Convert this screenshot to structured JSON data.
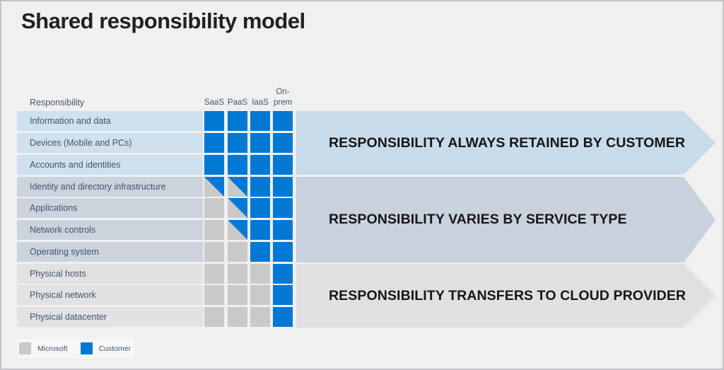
{
  "title": "Shared responsibility model",
  "table": {
    "header": {
      "responsibility": "Responsibility",
      "columns": [
        "SaaS",
        "PaaS",
        "IaaS",
        "On-\nprem"
      ]
    },
    "rows": [
      {
        "label": "Information and data",
        "group": "retained",
        "cells": [
          "customer",
          "customer",
          "customer",
          "customer"
        ]
      },
      {
        "label": "Devices (Mobile and PCs)",
        "group": "retained",
        "cells": [
          "customer",
          "customer",
          "customer",
          "customer"
        ]
      },
      {
        "label": "Accounts and identities",
        "group": "retained",
        "cells": [
          "customer",
          "customer",
          "customer",
          "customer"
        ]
      },
      {
        "label": "Identity and directory infrastructure",
        "group": "varies",
        "cells": [
          "shared",
          "shared",
          "customer",
          "customer"
        ]
      },
      {
        "label": "Applications",
        "group": "varies",
        "cells": [
          "microsoft",
          "shared",
          "customer",
          "customer"
        ]
      },
      {
        "label": "Network controls",
        "group": "varies",
        "cells": [
          "microsoft",
          "shared",
          "customer",
          "customer"
        ]
      },
      {
        "label": "Operating system",
        "group": "varies",
        "cells": [
          "microsoft",
          "microsoft",
          "customer",
          "customer"
        ]
      },
      {
        "label": "Physical hosts",
        "group": "transfers",
        "cells": [
          "microsoft",
          "microsoft",
          "microsoft",
          "customer"
        ]
      },
      {
        "label": "Physical network",
        "group": "transfers",
        "cells": [
          "microsoft",
          "microsoft",
          "microsoft",
          "customer"
        ]
      },
      {
        "label": "Physical datacenter",
        "group": "transfers",
        "cells": [
          "microsoft",
          "microsoft",
          "microsoft",
          "customer"
        ]
      }
    ]
  },
  "bands": [
    {
      "id": "retained",
      "label": "RESPONSIBILITY ALWAYS RETAINED BY CUSTOMER",
      "color": "#c8dbeb"
    },
    {
      "id": "varies",
      "label": "RESPONSIBILITY VARIES BY SERVICE TYPE",
      "color": "#c9d1dd"
    },
    {
      "id": "transfers",
      "label": "RESPONSIBILITY TRANSFERS TO CLOUD PROVIDER",
      "color": "#e0e0e0"
    }
  ],
  "legend": [
    {
      "label": "Microsoft",
      "owner": "microsoft",
      "color": "#c9c9c9"
    },
    {
      "label": "Customer",
      "owner": "customer",
      "color": "#0078d4"
    }
  ],
  "colors": {
    "customer_cell": "#0078d4",
    "microsoft_cell": "#c9c9c9",
    "row_bg_retained": "#cfe0ee",
    "row_bg_varies": "#ccd3dd",
    "row_bg_transfers": "#e2e2e2",
    "background": "#f0f0f1"
  }
}
